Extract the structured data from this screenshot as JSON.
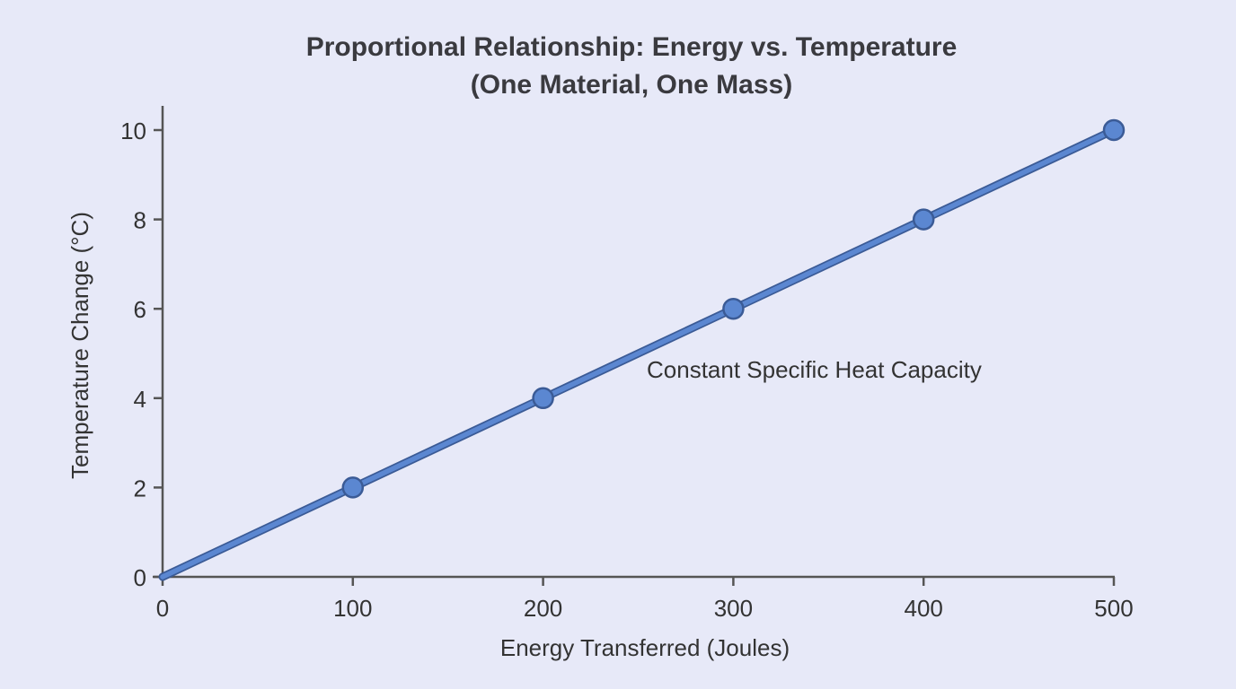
{
  "chart_data": {
    "type": "line",
    "title": "Proportional Relationship: Energy vs. Temperature",
    "subtitle": "(One Material, One Mass)",
    "xlabel": "Energy Transferred (Joules)",
    "ylabel": "Temperature Change (°C)",
    "xlim": [
      0,
      500
    ],
    "ylim": [
      0,
      10
    ],
    "xticks": [
      0,
      100,
      200,
      300,
      400,
      500
    ],
    "yticks": [
      0,
      2,
      4,
      6,
      8,
      10
    ],
    "grid": false,
    "x": [
      0,
      100,
      200,
      300,
      400,
      500
    ],
    "y": [
      0,
      2,
      4,
      6,
      8,
      10
    ],
    "markers_at": [
      100,
      200,
      300,
      400,
      500
    ],
    "annotation": "Constant Specific Heat Capacity",
    "colors": {
      "line": "#5b87d1",
      "outline": "#3b5b96",
      "axis": "#555555",
      "background": "#e7e9f8"
    }
  }
}
